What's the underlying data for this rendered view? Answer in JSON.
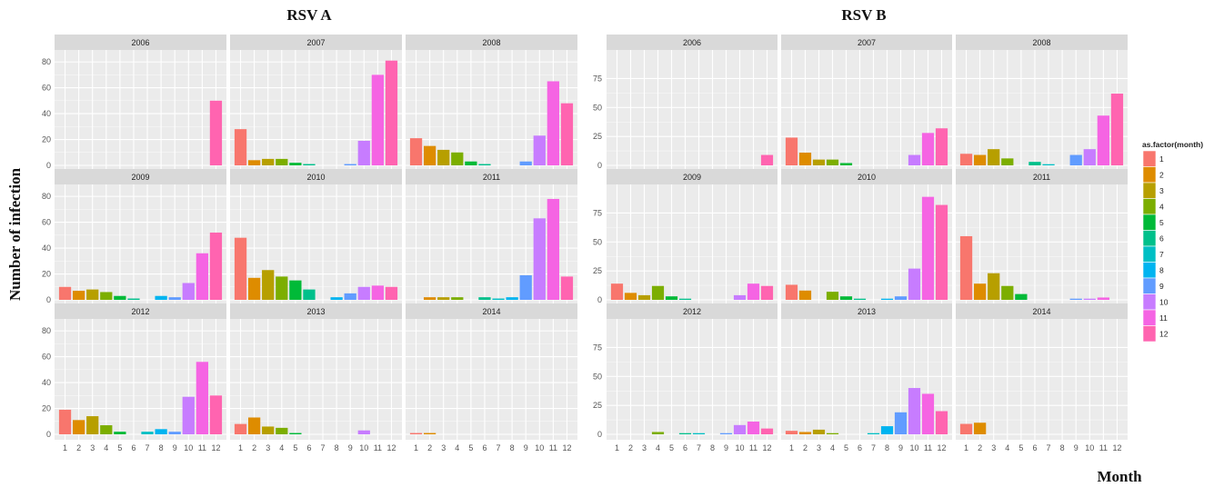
{
  "chart_data": [
    {
      "type": "bar",
      "title": "RSV A",
      "ylabel": "Number of infection",
      "xlabel": "Month",
      "ylim": [
        0,
        85
      ],
      "yticks": [
        0,
        20,
        40,
        60,
        80
      ],
      "categories": [
        "1",
        "2",
        "3",
        "4",
        "5",
        "6",
        "7",
        "8",
        "9",
        "10",
        "11",
        "12"
      ],
      "panels": [
        {
          "label": "2006",
          "values": [
            0,
            0,
            0,
            0,
            0,
            0,
            0,
            0,
            0,
            0,
            0,
            50
          ]
        },
        {
          "label": "2007",
          "values": [
            28,
            4,
            5,
            5,
            2,
            1,
            0,
            0,
            1,
            19,
            70,
            81
          ]
        },
        {
          "label": "2008",
          "values": [
            21,
            15,
            12,
            10,
            3,
            1,
            0,
            0,
            3,
            23,
            65,
            48
          ]
        },
        {
          "label": "2009",
          "values": [
            10,
            7,
            8,
            6,
            3,
            1,
            0,
            3,
            2,
            13,
            36,
            52
          ]
        },
        {
          "label": "2010",
          "values": [
            48,
            17,
            23,
            18,
            15,
            8,
            0,
            2,
            5,
            10,
            11,
            10
          ]
        },
        {
          "label": "2011",
          "values": [
            0,
            2,
            2,
            2,
            0,
            2,
            1,
            2,
            19,
            63,
            78,
            18
          ]
        },
        {
          "label": "2012",
          "values": [
            19,
            11,
            14,
            7,
            2,
            0,
            2,
            4,
            2,
            29,
            56,
            30
          ]
        },
        {
          "label": "2013",
          "values": [
            8,
            13,
            6,
            5,
            1,
            0,
            0,
            0,
            0,
            3,
            0,
            0
          ]
        },
        {
          "label": "2014",
          "values": [
            1,
            1,
            0,
            0,
            0,
            0,
            0,
            0,
            0,
            0,
            0,
            0
          ]
        }
      ]
    },
    {
      "type": "bar",
      "title": "RSV B",
      "ylabel": "Number of infection",
      "xlabel": "Month",
      "ylim": [
        0,
        95
      ],
      "yticks": [
        0,
        25,
        50,
        75
      ],
      "categories": [
        "1",
        "2",
        "3",
        "4",
        "5",
        "6",
        "7",
        "8",
        "9",
        "10",
        "11",
        "12"
      ],
      "panels": [
        {
          "label": "2006",
          "values": [
            0,
            0,
            0,
            0,
            0,
            0,
            0,
            0,
            0,
            0,
            0,
            9
          ]
        },
        {
          "label": "2007",
          "values": [
            24,
            11,
            5,
            5,
            2,
            0,
            0,
            0,
            0,
            9,
            28,
            32
          ]
        },
        {
          "label": "2008",
          "values": [
            10,
            9,
            14,
            6,
            0,
            3,
            1,
            0,
            9,
            14,
            43,
            62
          ]
        },
        {
          "label": "2009",
          "values": [
            14,
            6,
            4,
            12,
            3,
            1,
            0,
            0,
            0,
            4,
            14,
            12
          ]
        },
        {
          "label": "2010",
          "values": [
            13,
            8,
            0,
            7,
            3,
            1,
            0,
            1,
            3,
            27,
            89,
            82
          ]
        },
        {
          "label": "2011",
          "values": [
            55,
            14,
            23,
            12,
            5,
            0,
            0,
            0,
            1,
            1,
            2,
            0
          ]
        },
        {
          "label": "2012",
          "values": [
            0,
            0,
            0,
            2,
            0,
            1,
            1,
            0,
            1,
            8,
            11,
            5
          ]
        },
        {
          "label": "2013",
          "values": [
            3,
            2,
            4,
            1,
            0,
            0,
            1,
            7,
            19,
            40,
            35,
            20
          ]
        },
        {
          "label": "2014",
          "values": [
            9,
            10,
            0,
            0,
            0,
            0,
            0,
            0,
            0,
            0,
            0,
            0
          ]
        }
      ]
    }
  ],
  "legend": {
    "title": "as.factor(month)",
    "items": [
      "1",
      "2",
      "3",
      "4",
      "5",
      "6",
      "7",
      "8",
      "9",
      "10",
      "11",
      "12"
    ],
    "colors": [
      "#F8766D",
      "#DE8C00",
      "#B79F00",
      "#7CAE00",
      "#00BA38",
      "#00C08B",
      "#00BFC4",
      "#00B4F0",
      "#619CFF",
      "#C77CFF",
      "#F564E3",
      "#FF64B0"
    ]
  },
  "colors": {
    "panel_bg": "#EBEBEB",
    "strip_bg": "#D9D9D9",
    "grid": "#FFFFFF"
  }
}
